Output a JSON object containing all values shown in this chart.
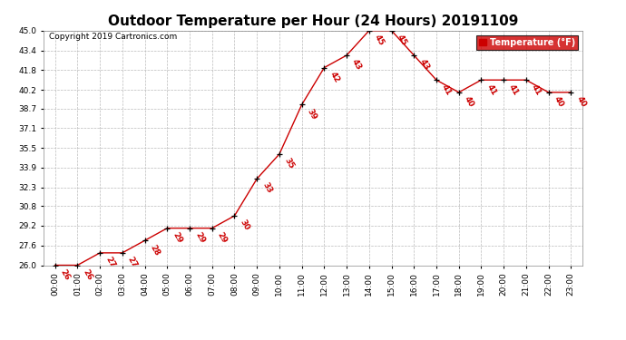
{
  "title": "Outdoor Temperature per Hour (24 Hours) 20191109",
  "copyright_text": "Copyright 2019 Cartronics.com",
  "legend_label": "Temperature (°F)",
  "hours": [
    "00:00",
    "01:00",
    "02:00",
    "03:00",
    "04:00",
    "05:00",
    "06:00",
    "07:00",
    "08:00",
    "09:00",
    "10:00",
    "11:00",
    "12:00",
    "13:00",
    "14:00",
    "15:00",
    "16:00",
    "17:00",
    "18:00",
    "19:00",
    "20:00",
    "21:00",
    "22:00",
    "23:00"
  ],
  "temps": [
    26,
    26,
    27,
    27,
    28,
    29,
    29,
    29,
    30,
    33,
    35,
    39,
    42,
    43,
    45,
    45,
    43,
    41,
    40,
    41,
    41,
    41,
    40,
    40
  ],
  "ylim": [
    26.0,
    45.0
  ],
  "yticks": [
    26.0,
    27.6,
    29.2,
    30.8,
    32.3,
    33.9,
    35.5,
    37.1,
    38.7,
    40.2,
    41.8,
    43.4,
    45.0
  ],
  "line_color": "#cc0000",
  "marker_color": "#000000",
  "label_color": "#cc0000",
  "bg_color": "#ffffff",
  "grid_color": "#bbbbbb",
  "title_fontsize": 11,
  "copyright_fontsize": 6.5,
  "label_fontsize": 6.5,
  "tick_fontsize": 6.5,
  "legend_bg": "#cc0000",
  "legend_fg": "#ffffff"
}
